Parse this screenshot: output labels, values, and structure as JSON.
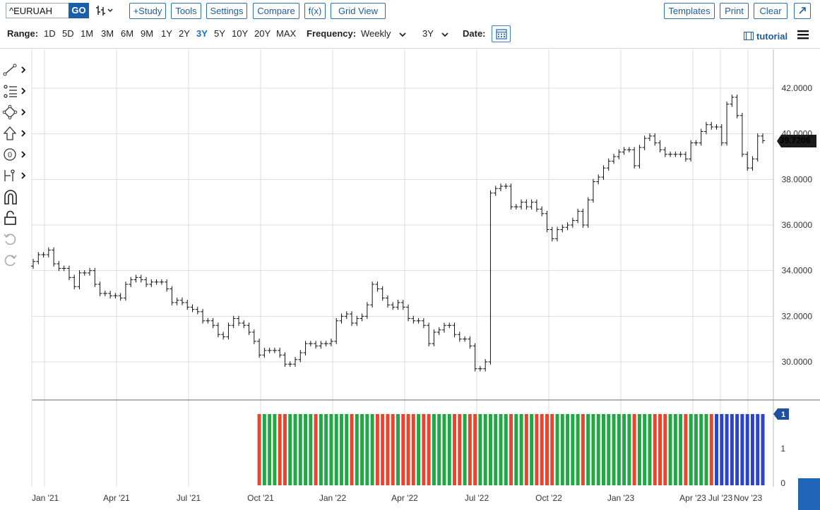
{
  "toolbar": {
    "symbol": "^EURUAH",
    "go_label": "GO",
    "study_label": "+Study",
    "tools_label": "Tools",
    "settings_label": "Settings",
    "compare_label": "Compare",
    "fx_label": "f(x)",
    "gridview_label": "Grid View",
    "templates_label": "Templates",
    "print_label": "Print",
    "clear_label": "Clear",
    "expand_icon": "expand-arrow-icon"
  },
  "bar2": {
    "range_label": "Range:",
    "ranges": [
      "1D",
      "5D",
      "1M",
      "3M",
      "6M",
      "9M",
      "1Y",
      "2Y",
      "3Y",
      "5Y",
      "10Y",
      "20Y",
      "MAX"
    ],
    "active_range": "3Y",
    "frequency_label": "Frequency:",
    "frequency_value": "Weekly",
    "period_value": "3Y",
    "date_label": "Date:",
    "tutorial_label": "tutorial"
  },
  "left_tools": [
    "line-tool-icon",
    "fib-tool-icon",
    "shape-tool-icon",
    "arrow-tool-icon",
    "annotation-tool-icon",
    "measure-tool-icon",
    "magnet-icon",
    "lock-icon",
    "undo-icon",
    "redo-icon"
  ],
  "colors": {
    "accent": "#1d5c9c",
    "up": "#21a844",
    "down": "#e8452f",
    "neutral": "#2c45c8",
    "grid": "#dcdcdc"
  },
  "chart_data": [
    {
      "type": "ohlc",
      "symbol": "^EURUAH",
      "x_tick_labels": [
        "Jan '21",
        "Apr '21",
        "Jul '21",
        "Oct '21",
        "Jan '22",
        "Apr '22",
        "Jul '22",
        "Oct '22",
        "Jan '23",
        "Apr '23",
        "Jul '23",
        "Nov '23"
      ],
      "y_tick_labels": [
        "30.0000",
        "32.0000",
        "34.0000",
        "36.0000",
        "38.0000",
        "40.0000",
        "42.0000"
      ],
      "ylim": [
        28.5,
        43.8
      ],
      "last_price": "39.7206",
      "weekly_close": [
        34.4,
        34.7,
        34.7,
        34.9,
        34.3,
        34.1,
        34.1,
        33.7,
        33.3,
        33.9,
        33.9,
        34.0,
        33.4,
        33.0,
        33.0,
        32.9,
        32.9,
        32.8,
        33.4,
        33.6,
        33.7,
        33.6,
        33.4,
        33.5,
        33.5,
        33.5,
        33.2,
        32.6,
        32.7,
        32.6,
        32.4,
        32.3,
        32.2,
        31.8,
        31.8,
        31.6,
        31.2,
        31.1,
        31.6,
        31.9,
        31.7,
        31.6,
        31.3,
        30.9,
        30.3,
        30.5,
        30.5,
        30.5,
        30.3,
        29.9,
        29.9,
        30.1,
        30.4,
        30.8,
        30.8,
        30.7,
        30.8,
        30.8,
        30.9,
        31.8,
        32.0,
        32.1,
        31.7,
        31.9,
        32.0,
        32.5,
        33.4,
        33.2,
        32.8,
        32.5,
        32.4,
        32.6,
        32.4,
        31.9,
        31.8,
        31.8,
        31.6,
        30.8,
        31.3,
        31.4,
        31.6,
        31.6,
        31.2,
        31.0,
        31.0,
        30.7,
        29.7,
        29.7,
        30.0,
        37.4,
        37.6,
        37.7,
        37.7,
        36.8,
        36.8,
        37.0,
        36.8,
        37.0,
        36.7,
        36.5,
        35.8,
        35.4,
        35.8,
        35.9,
        36.0,
        36.2,
        36.6,
        36.0,
        37.1,
        37.9,
        38.1,
        38.5,
        38.8,
        39.0,
        39.2,
        39.3,
        39.3,
        38.6,
        39.4,
        39.8,
        39.9,
        39.6,
        39.3,
        39.1,
        39.1,
        39.1,
        39.1,
        38.9,
        39.6,
        39.6,
        40.1,
        40.4,
        40.3,
        40.3,
        39.6,
        41.3,
        41.6,
        40.8,
        39.1,
        38.5,
        38.9,
        39.9,
        39.7
      ],
      "study_series": {
        "name": "",
        "categories": [
          "up",
          "down",
          "neutral"
        ],
        "values_note": ""
      },
      "study_y_tick_labels": [
        "0",
        "1",
        "1"
      ]
    }
  ]
}
